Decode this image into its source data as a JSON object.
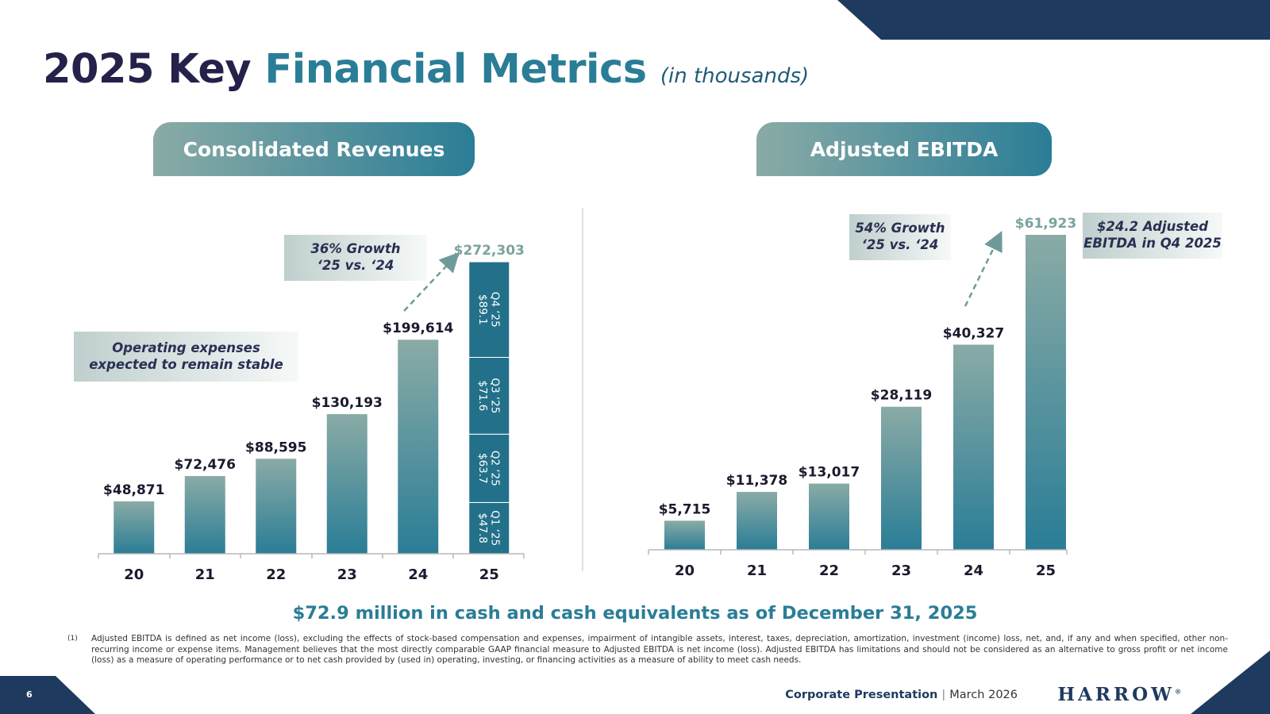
{
  "slide": {
    "title_main": "2025 Key ",
    "title_highlight": "Financial Metrics",
    "title_sub": "(in thousands)",
    "page_number": "6"
  },
  "colors": {
    "navy": "#24214a",
    "teal": "#2a7d96",
    "dark_band": "#1f3a5f",
    "sage": "#8aaba6"
  },
  "panels": {
    "revenue": {
      "header": "Consolidated Revenues",
      "growth_callout_line1": "36% Growth",
      "growth_callout_line2": "‘25 vs. ‘24",
      "opex_callout_line1": "Operating expenses",
      "opex_callout_line2": "expected to remain stable"
    },
    "ebitda": {
      "header": "Adjusted EBITDA",
      "growth_callout_line1": "54% Growth",
      "growth_callout_line2": "‘25 vs. ‘24",
      "q4_callout_line1": "$24.2 Adjusted",
      "q4_callout_line2": "EBITDA in Q4 2025"
    }
  },
  "chart_data": [
    {
      "type": "bar",
      "title": "Consolidated Revenues",
      "categories": [
        "20",
        "21",
        "22",
        "23",
        "24",
        "25"
      ],
      "values": [
        48871,
        72476,
        88595,
        130193,
        199614,
        272303
      ],
      "data_labels": [
        "$48,871",
        "$72,476",
        "$88,595",
        "$130,193",
        "$199,614",
        "$272,303"
      ],
      "ylim": [
        0,
        272303
      ],
      "units": "thousands USD",
      "stacked_last": [
        {
          "quarter": "Q1 ‘25",
          "value": 47.8,
          "label": "$47.8"
        },
        {
          "quarter": "Q2 ‘25",
          "value": 63.7,
          "label": "$63.7"
        },
        {
          "quarter": "Q3 ‘25",
          "value": 71.6,
          "label": "$71.6"
        },
        {
          "quarter": "Q4 ‘25",
          "value": 89.1,
          "label": "$89.1"
        }
      ]
    },
    {
      "type": "bar",
      "title": "Adjusted EBITDA",
      "categories": [
        "20",
        "21",
        "22",
        "23",
        "24",
        "25"
      ],
      "values": [
        5715,
        11378,
        13017,
        28119,
        40327,
        61923
      ],
      "data_labels": [
        "$5,715",
        "$11,378",
        "$13,017",
        "$28,119",
        "$40,327",
        "$61,923"
      ],
      "ylim": [
        0,
        61923
      ],
      "units": "thousands USD"
    }
  ],
  "cash_statement": "$72.9 million in cash and cash equivalents as of December 31, 2025",
  "footnote_marker": "(1)",
  "footnote": "Adjusted EBITDA is defined as net income (loss), excluding the effects of stock-based compensation and expenses, impairment of intangible assets, interest, taxes, depreciation, amortization, investment (income) loss, net, and, if any and when specified, other non-recurring income or expense items. Management believes that the most directly comparable GAAP financial measure to Adjusted EBITDA is net income (loss). Adjusted EBITDA has limitations and should not be considered as an alternative to gross profit or net income (loss) as a measure of operating performance or to net cash provided by (used in) operating, investing, or financing activities as a measure of ability to meet cash needs.",
  "footer": {
    "presentation": "Corporate Presentation",
    "separator": "|",
    "date": "March 2026",
    "logo_text": "HARROW",
    "logo_mark": "®"
  }
}
